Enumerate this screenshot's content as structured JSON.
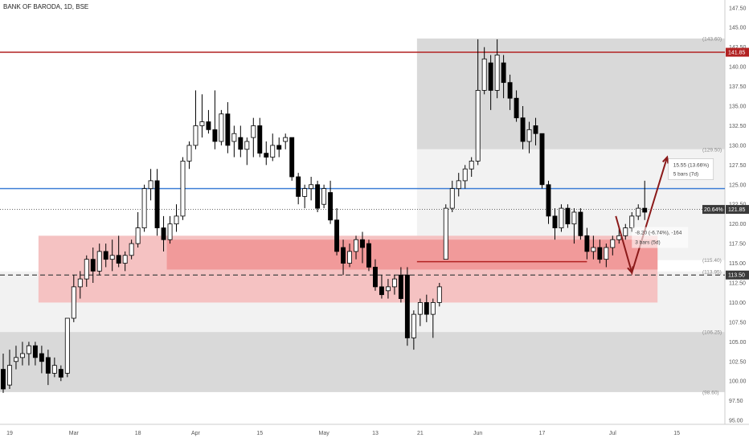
{
  "chart_data": {
    "type": "candlestick",
    "title": "BANK OF BARODA, 1D, BSE",
    "y_axis": {
      "ticks": [
        95.0,
        97.5,
        100.0,
        102.5,
        105.0,
        107.5,
        110.0,
        112.5,
        115.0,
        117.5,
        120.0,
        122.5,
        125.0,
        127.5,
        130.0,
        132.5,
        135.0,
        137.5,
        140.0,
        142.5,
        145.0,
        147.5
      ],
      "range": [
        94.5,
        148.5
      ],
      "position": "right"
    },
    "x_axis": {
      "ticks": [
        {
          "label": "19",
          "bar": 1
        },
        {
          "label": "Mar",
          "bar": 11
        },
        {
          "label": "18",
          "bar": 21
        },
        {
          "label": "Apr",
          "bar": 30
        },
        {
          "label": "15",
          "bar": 40
        },
        {
          "label": "May",
          "bar": 50
        },
        {
          "label": "13",
          "bar": 58
        },
        {
          "label": "21",
          "bar": 65
        },
        {
          "label": "Jun",
          "bar": 74
        },
        {
          "label": "17",
          "bar": 84
        },
        {
          "label": "Jul",
          "bar": 95
        },
        {
          "label": "15",
          "bar": 105
        }
      ],
      "range": [
        0,
        113
      ]
    },
    "candles": [
      {
        "o": 101.5,
        "h": 103.5,
        "l": 98.5,
        "c": 99.0
      },
      {
        "o": 99.5,
        "h": 104.0,
        "l": 99.0,
        "c": 102.0
      },
      {
        "o": 102.5,
        "h": 104.5,
        "l": 101.5,
        "c": 103.0
      },
      {
        "o": 103.0,
        "h": 105.0,
        "l": 102.0,
        "c": 103.5
      },
      {
        "o": 103.5,
        "h": 105.0,
        "l": 102.0,
        "c": 104.5
      },
      {
        "o": 104.5,
        "h": 105.0,
        "l": 102.0,
        "c": 103.0
      },
      {
        "o": 103.5,
        "h": 104.5,
        "l": 101.0,
        "c": 102.5
      },
      {
        "o": 103.0,
        "h": 104.0,
        "l": 99.5,
        "c": 101.0
      },
      {
        "o": 101.0,
        "h": 103.0,
        "l": 100.5,
        "c": 102.0
      },
      {
        "o": 101.5,
        "h": 102.0,
        "l": 100.0,
        "c": 100.5
      },
      {
        "o": 101.0,
        "h": 108.0,
        "l": 100.5,
        "c": 108.0
      },
      {
        "o": 108.0,
        "h": 113.5,
        "l": 107.5,
        "c": 112.0
      },
      {
        "o": 112.0,
        "h": 114.0,
        "l": 110.5,
        "c": 113.0
      },
      {
        "o": 113.0,
        "h": 116.0,
        "l": 112.0,
        "c": 115.5
      },
      {
        "o": 115.5,
        "h": 117.0,
        "l": 112.5,
        "c": 114.0
      },
      {
        "o": 114.0,
        "h": 117.5,
        "l": 113.5,
        "c": 116.5
      },
      {
        "o": 116.5,
        "h": 117.5,
        "l": 114.5,
        "c": 115.5
      },
      {
        "o": 115.5,
        "h": 118.0,
        "l": 114.0,
        "c": 116.0
      },
      {
        "o": 116.0,
        "h": 118.5,
        "l": 114.5,
        "c": 115.0
      },
      {
        "o": 115.0,
        "h": 116.5,
        "l": 114.0,
        "c": 116.0
      },
      {
        "o": 116.0,
        "h": 118.0,
        "l": 115.5,
        "c": 117.5
      },
      {
        "o": 117.5,
        "h": 121.5,
        "l": 117.0,
        "c": 119.5
      },
      {
        "o": 119.5,
        "h": 125.0,
        "l": 119.0,
        "c": 124.5
      },
      {
        "o": 124.5,
        "h": 127.0,
        "l": 123.0,
        "c": 125.5
      },
      {
        "o": 125.5,
        "h": 127.0,
        "l": 118.5,
        "c": 119.5
      },
      {
        "o": 119.5,
        "h": 121.0,
        "l": 116.5,
        "c": 118.0
      },
      {
        "o": 118.0,
        "h": 121.0,
        "l": 117.5,
        "c": 120.0
      },
      {
        "o": 120.0,
        "h": 122.5,
        "l": 119.0,
        "c": 121.0
      },
      {
        "o": 121.0,
        "h": 128.5,
        "l": 120.5,
        "c": 128.0
      },
      {
        "o": 128.0,
        "h": 130.5,
        "l": 127.0,
        "c": 130.0
      },
      {
        "o": 130.0,
        "h": 137.0,
        "l": 129.5,
        "c": 132.5
      },
      {
        "o": 132.5,
        "h": 136.5,
        "l": 131.0,
        "c": 133.0
      },
      {
        "o": 133.0,
        "h": 134.5,
        "l": 131.5,
        "c": 132.0
      },
      {
        "o": 132.0,
        "h": 137.0,
        "l": 129.5,
        "c": 130.5
      },
      {
        "o": 130.5,
        "h": 134.5,
        "l": 130.0,
        "c": 134.0
      },
      {
        "o": 134.0,
        "h": 135.5,
        "l": 129.0,
        "c": 130.0
      },
      {
        "o": 130.5,
        "h": 132.5,
        "l": 128.5,
        "c": 131.5
      },
      {
        "o": 131.0,
        "h": 132.5,
        "l": 128.5,
        "c": 129.5
      },
      {
        "o": 129.5,
        "h": 131.0,
        "l": 127.5,
        "c": 130.5
      },
      {
        "o": 131.0,
        "h": 133.5,
        "l": 128.5,
        "c": 132.5
      },
      {
        "o": 132.5,
        "h": 133.5,
        "l": 128.5,
        "c": 129.0
      },
      {
        "o": 129.0,
        "h": 130.5,
        "l": 127.5,
        "c": 128.5
      },
      {
        "o": 128.5,
        "h": 131.5,
        "l": 128.0,
        "c": 130.0
      },
      {
        "o": 130.0,
        "h": 131.0,
        "l": 128.5,
        "c": 129.5
      },
      {
        "o": 130.5,
        "h": 131.5,
        "l": 129.5,
        "c": 131.0
      },
      {
        "o": 131.0,
        "h": 131.0,
        "l": 125.5,
        "c": 126.0
      },
      {
        "o": 126.0,
        "h": 126.5,
        "l": 122.5,
        "c": 123.5
      },
      {
        "o": 123.5,
        "h": 125.0,
        "l": 122.0,
        "c": 124.5
      },
      {
        "o": 124.5,
        "h": 126.0,
        "l": 123.0,
        "c": 125.0
      },
      {
        "o": 125.0,
        "h": 125.5,
        "l": 121.5,
        "c": 122.0
      },
      {
        "o": 122.5,
        "h": 125.0,
        "l": 122.0,
        "c": 124.5
      },
      {
        "o": 124.0,
        "h": 125.5,
        "l": 120.0,
        "c": 120.5
      },
      {
        "o": 120.5,
        "h": 122.0,
        "l": 116.0,
        "c": 116.5
      },
      {
        "o": 117.0,
        "h": 118.0,
        "l": 113.5,
        "c": 115.0
      },
      {
        "o": 115.0,
        "h": 117.5,
        "l": 114.5,
        "c": 116.5
      },
      {
        "o": 116.5,
        "h": 118.5,
        "l": 115.5,
        "c": 118.0
      },
      {
        "o": 118.0,
        "h": 119.0,
        "l": 115.0,
        "c": 117.0
      },
      {
        "o": 117.5,
        "h": 118.0,
        "l": 114.0,
        "c": 114.5
      },
      {
        "o": 114.5,
        "h": 115.5,
        "l": 111.5,
        "c": 112.0
      },
      {
        "o": 112.0,
        "h": 113.5,
        "l": 110.5,
        "c": 111.0
      },
      {
        "o": 111.5,
        "h": 113.0,
        "l": 110.5,
        "c": 112.0
      },
      {
        "o": 112.0,
        "h": 113.5,
        "l": 111.0,
        "c": 113.0
      },
      {
        "o": 113.5,
        "h": 114.5,
        "l": 110.0,
        "c": 110.5
      },
      {
        "o": 113.5,
        "h": 114.5,
        "l": 104.5,
        "c": 105.5
      },
      {
        "o": 105.5,
        "h": 109.0,
        "l": 104.0,
        "c": 108.5
      },
      {
        "o": 108.5,
        "h": 110.5,
        "l": 107.0,
        "c": 110.0
      },
      {
        "o": 110.0,
        "h": 111.0,
        "l": 107.5,
        "c": 108.5
      },
      {
        "o": 108.5,
        "h": 110.5,
        "l": 105.5,
        "c": 110.0
      },
      {
        "o": 110.0,
        "h": 112.5,
        "l": 109.5,
        "c": 112.0
      },
      {
        "o": 115.5,
        "h": 122.5,
        "l": 115.5,
        "c": 122.0
      },
      {
        "o": 122.0,
        "h": 125.5,
        "l": 121.5,
        "c": 124.5
      },
      {
        "o": 124.5,
        "h": 126.5,
        "l": 123.5,
        "c": 125.5
      },
      {
        "o": 125.5,
        "h": 127.5,
        "l": 124.5,
        "c": 127.0
      },
      {
        "o": 127.0,
        "h": 128.5,
        "l": 126.0,
        "c": 128.0
      },
      {
        "o": 128.0,
        "h": 143.5,
        "l": 127.5,
        "c": 137.0
      },
      {
        "o": 137.0,
        "h": 142.5,
        "l": 136.5,
        "c": 141.0
      },
      {
        "o": 140.5,
        "h": 141.5,
        "l": 134.5,
        "c": 137.0
      },
      {
        "o": 137.0,
        "h": 143.5,
        "l": 136.0,
        "c": 141.5
      },
      {
        "o": 140.5,
        "h": 141.5,
        "l": 136.0,
        "c": 138.0
      },
      {
        "o": 138.0,
        "h": 139.0,
        "l": 134.5,
        "c": 136.0
      },
      {
        "o": 136.0,
        "h": 137.0,
        "l": 133.0,
        "c": 133.5
      },
      {
        "o": 133.5,
        "h": 135.0,
        "l": 129.5,
        "c": 130.5
      },
      {
        "o": 130.5,
        "h": 133.0,
        "l": 129.0,
        "c": 132.0
      },
      {
        "o": 132.5,
        "h": 133.5,
        "l": 130.0,
        "c": 131.5
      },
      {
        "o": 131.5,
        "h": 131.5,
        "l": 124.5,
        "c": 125.0
      },
      {
        "o": 125.0,
        "h": 125.5,
        "l": 120.0,
        "c": 121.0
      },
      {
        "o": 121.0,
        "h": 122.0,
        "l": 118.0,
        "c": 119.5
      },
      {
        "o": 119.5,
        "h": 122.5,
        "l": 119.0,
        "c": 122.0
      },
      {
        "o": 122.0,
        "h": 122.5,
        "l": 119.5,
        "c": 120.0
      },
      {
        "o": 120.0,
        "h": 122.0,
        "l": 117.5,
        "c": 121.5
      },
      {
        "o": 121.5,
        "h": 122.0,
        "l": 118.0,
        "c": 118.5
      },
      {
        "o": 118.5,
        "h": 119.5,
        "l": 115.5,
        "c": 116.5
      },
      {
        "o": 116.5,
        "h": 118.5,
        "l": 115.5,
        "c": 117.0
      },
      {
        "o": 117.0,
        "h": 118.0,
        "l": 115.0,
        "c": 115.5
      },
      {
        "o": 115.5,
        "h": 117.5,
        "l": 114.5,
        "c": 117.0
      },
      {
        "o": 117.0,
        "h": 118.5,
        "l": 116.0,
        "c": 118.0
      },
      {
        "o": 118.0,
        "h": 119.5,
        "l": 117.5,
        "c": 118.5
      },
      {
        "o": 118.5,
        "h": 120.0,
        "l": 118.0,
        "c": 119.5
      },
      {
        "o": 119.5,
        "h": 121.5,
        "l": 119.0,
        "c": 121.0
      },
      {
        "o": 121.0,
        "h": 122.5,
        "l": 120.5,
        "c": 122.0
      },
      {
        "o": 122.0,
        "h": 125.5,
        "l": 120.5,
        "c": 121.5
      }
    ],
    "horizontal_lines": [
      {
        "price": 141.85,
        "color": "#b22222",
        "style": "solid",
        "label": "141.85"
      },
      {
        "price": 124.5,
        "color": "#3f7fd6",
        "style": "solid"
      },
      {
        "price": 121.85,
        "color": "#555555",
        "style": "dotted",
        "label": "121.85"
      },
      {
        "price": 113.5,
        "color": "#444444",
        "style": "dashed",
        "label": "113.50"
      }
    ],
    "zones": [
      {
        "x0": 65,
        "x1": 113,
        "y0": 129.5,
        "y1": 143.6,
        "color": "#d9d9d9"
      },
      {
        "x0": 0,
        "x1": 113,
        "y0": 98.6,
        "y1": 106.25,
        "color": "#d9d9d9"
      },
      {
        "x0": 0,
        "x1": 113,
        "y0": 106.25,
        "y1": 113.95,
        "color": "#f2f2f2"
      },
      {
        "x0": 65,
        "x1": 113,
        "y0": 115.4,
        "y1": 129.5,
        "color": "#f2f2f2"
      },
      {
        "x0": 6,
        "x1": 102.5,
        "y0": 110.0,
        "y1": 118.5,
        "color": "#f5c2c2"
      },
      {
        "x0": 26,
        "x1": 102.5,
        "y0": 114.2,
        "y1": 118.0,
        "color": "#f19a9a"
      }
    ],
    "support_line": {
      "price": 115.2,
      "x0": 65,
      "x1": 91.5,
      "color": "#b22222"
    },
    "arrow_path": [
      {
        "bar": 96,
        "price": 121.0
      },
      {
        "bar": 98.5,
        "price": 113.8
      },
      {
        "bar": 104,
        "price": 128.5
      }
    ],
    "axis_price_labels": [
      {
        "price": 143.6,
        "text": "(143.60)"
      },
      {
        "price": 129.5,
        "text": "(129.50)"
      },
      {
        "price": 115.4,
        "text": "(115.40)"
      },
      {
        "price": 113.95,
        "text": "(113.95)"
      },
      {
        "price": 106.25,
        "text": "(106.25)"
      },
      {
        "price": 98.6,
        "text": "(98.60)"
      }
    ],
    "callouts": {
      "projection": {
        "line1": "15.55 (13.66%)",
        "line2": "5 bars (7d)"
      },
      "retracement": {
        "line1": "-8.20 (-6.74%), -164",
        "line2": "3 bars (5d)"
      },
      "last_change": "20.64%"
    },
    "colors": {
      "up": "#ffffff",
      "down": "#000000",
      "outline": "#000000"
    }
  }
}
